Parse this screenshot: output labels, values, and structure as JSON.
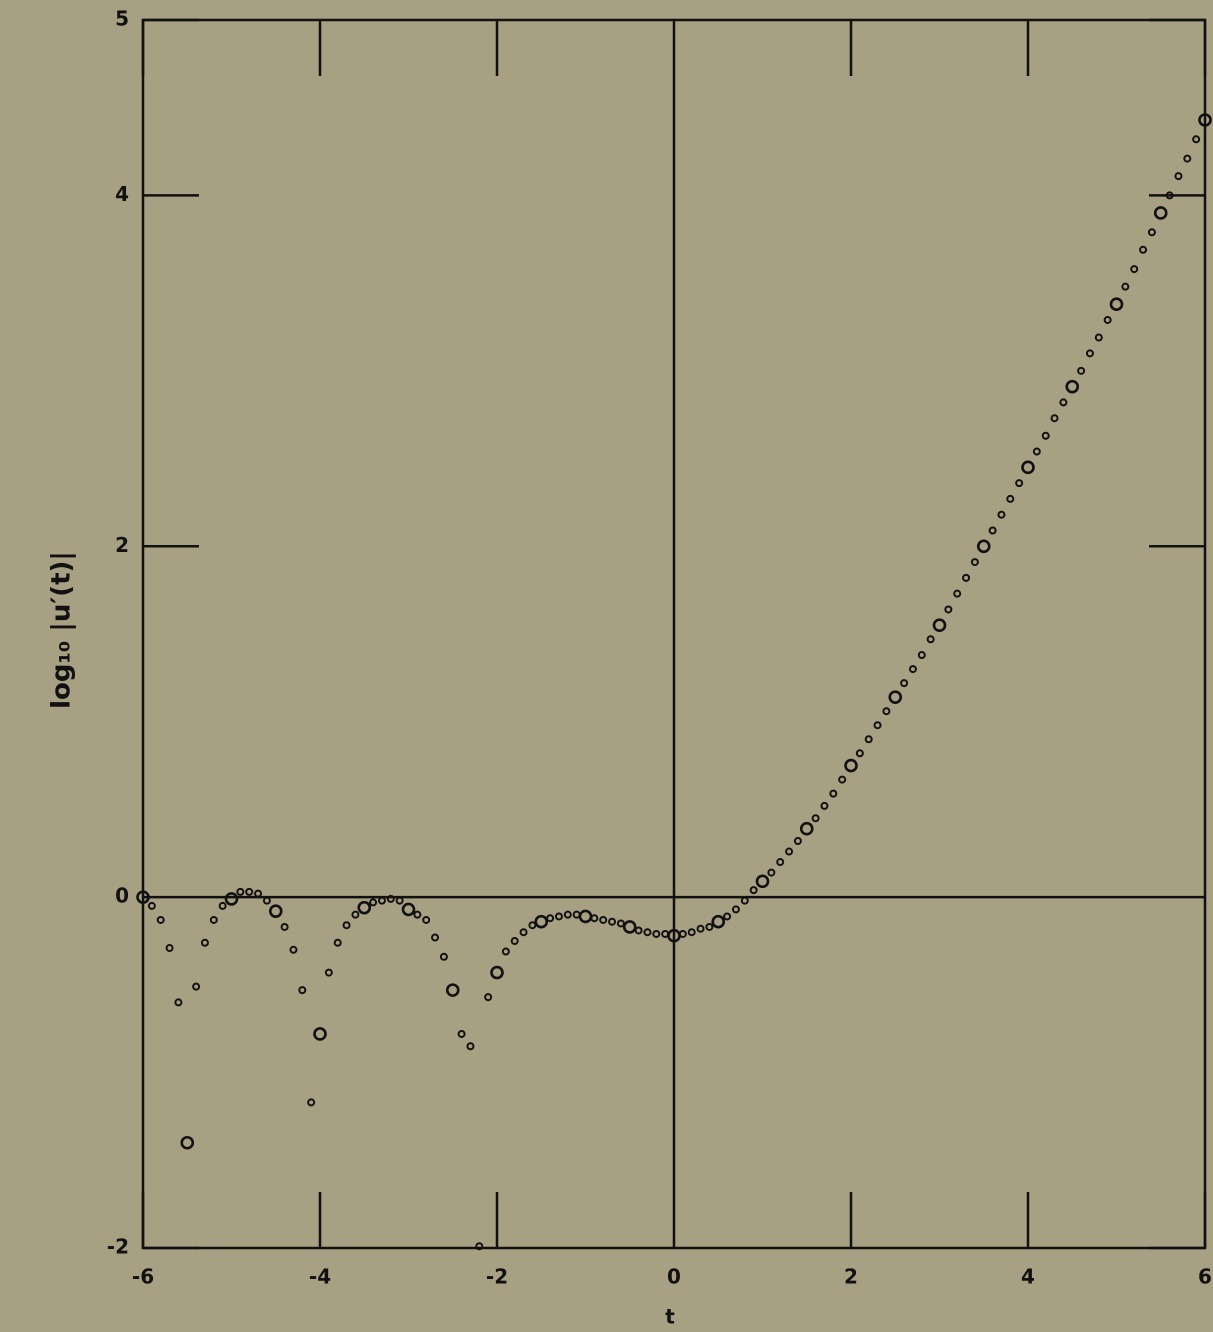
{
  "chart_data": {
    "type": "scatter",
    "x_label": "t",
    "y_label": "log₁₀ |u′(t)|",
    "xlim": [
      -6,
      6
    ],
    "ylim": [
      -2,
      5
    ],
    "xticks": [
      -6,
      -4,
      -2,
      0,
      2,
      4,
      6
    ],
    "yticks": [
      -2,
      0,
      2,
      4,
      5
    ],
    "color": "#111111",
    "x": [
      -6.0,
      -5.9,
      -5.8,
      -5.7,
      -5.6,
      -5.5,
      -5.4,
      -5.3,
      -5.2,
      -5.1,
      -5.0,
      -4.9,
      -4.8,
      -4.7,
      -4.6,
      -4.5,
      -4.4,
      -4.3,
      -4.2,
      -4.1,
      -4.0,
      -3.9,
      -3.8,
      -3.7,
      -3.6,
      -3.5,
      -3.4,
      -3.3,
      -3.2,
      -3.1,
      -3.0,
      -2.9,
      -2.8,
      -2.7,
      -2.6,
      -2.5,
      -2.4,
      -2.3,
      -2.2,
      -2.1,
      -2.0,
      -1.9,
      -1.8,
      -1.7,
      -1.6,
      -1.5,
      -1.4,
      -1.3,
      -1.2,
      -1.1,
      -1.0,
      -0.9,
      -0.8,
      -0.7,
      -0.6,
      -0.5,
      -0.4,
      -0.3,
      -0.2,
      -0.1,
      0.0,
      0.1,
      0.2,
      0.3,
      0.4,
      0.5,
      0.6,
      0.7,
      0.8,
      0.9,
      1.0,
      1.1,
      1.2,
      1.3,
      1.4,
      1.5,
      1.6,
      1.7,
      1.8,
      1.9,
      2.0,
      2.1,
      2.2,
      2.3,
      2.4,
      2.5,
      2.6,
      2.7,
      2.8,
      2.9,
      3.0,
      3.1,
      3.2,
      3.3,
      3.4,
      3.5,
      3.6,
      3.7,
      3.8,
      3.9,
      4.0,
      4.1,
      4.2,
      4.3,
      4.4,
      4.5,
      4.6,
      4.7,
      4.8,
      4.9,
      5.0,
      5.1,
      5.2,
      5.3,
      5.4,
      5.5,
      5.6,
      5.7,
      5.8,
      5.9,
      6.0
    ],
    "values": [
      0,
      -0.05,
      -0.13,
      -0.29,
      -0.6,
      -1.4,
      -0.51,
      -0.26,
      -0.13,
      -0.05,
      -0.01,
      0.03,
      0.03,
      0.02,
      -0.02,
      -0.08,
      -0.17,
      -0.3,
      -0.53,
      -1.17,
      -0.78,
      -0.43,
      -0.26,
      -0.16,
      -0.1,
      -0.06,
      -0.03,
      -0.02,
      -0.01,
      -0.02,
      -0.07,
      -0.1,
      -0.13,
      -0.23,
      -0.34,
      -0.53,
      -0.78,
      -0.85,
      -1.99,
      -0.57,
      -0.43,
      -0.31,
      -0.25,
      -0.2,
      -0.16,
      -0.14,
      -0.12,
      -0.11,
      -0.1,
      -0.1,
      -0.11,
      -0.12,
      -0.13,
      -0.14,
      -0.15,
      -0.17,
      -0.19,
      -0.2,
      -0.21,
      -0.21,
      -0.22,
      -0.21,
      -0.2,
      -0.18,
      -0.17,
      -0.14,
      -0.11,
      -0.07,
      -0.02,
      0.04,
      0.09,
      0.14,
      0.2,
      0.26,
      0.32,
      0.39,
      0.45,
      0.52,
      0.59,
      0.67,
      0.75,
      0.82,
      0.9,
      0.98,
      1.06,
      1.14,
      1.22,
      1.3,
      1.38,
      1.47,
      1.55,
      1.64,
      1.73,
      1.82,
      1.91,
      2.0,
      2.09,
      2.18,
      2.27,
      2.36,
      2.45,
      2.54,
      2.63,
      2.73,
      2.82,
      2.91,
      3.0,
      3.1,
      3.19,
      3.29,
      3.38,
      3.48,
      3.58,
      3.69,
      3.79,
      3.9,
      4.0,
      4.11,
      4.21,
      4.32,
      4.43
    ]
  }
}
